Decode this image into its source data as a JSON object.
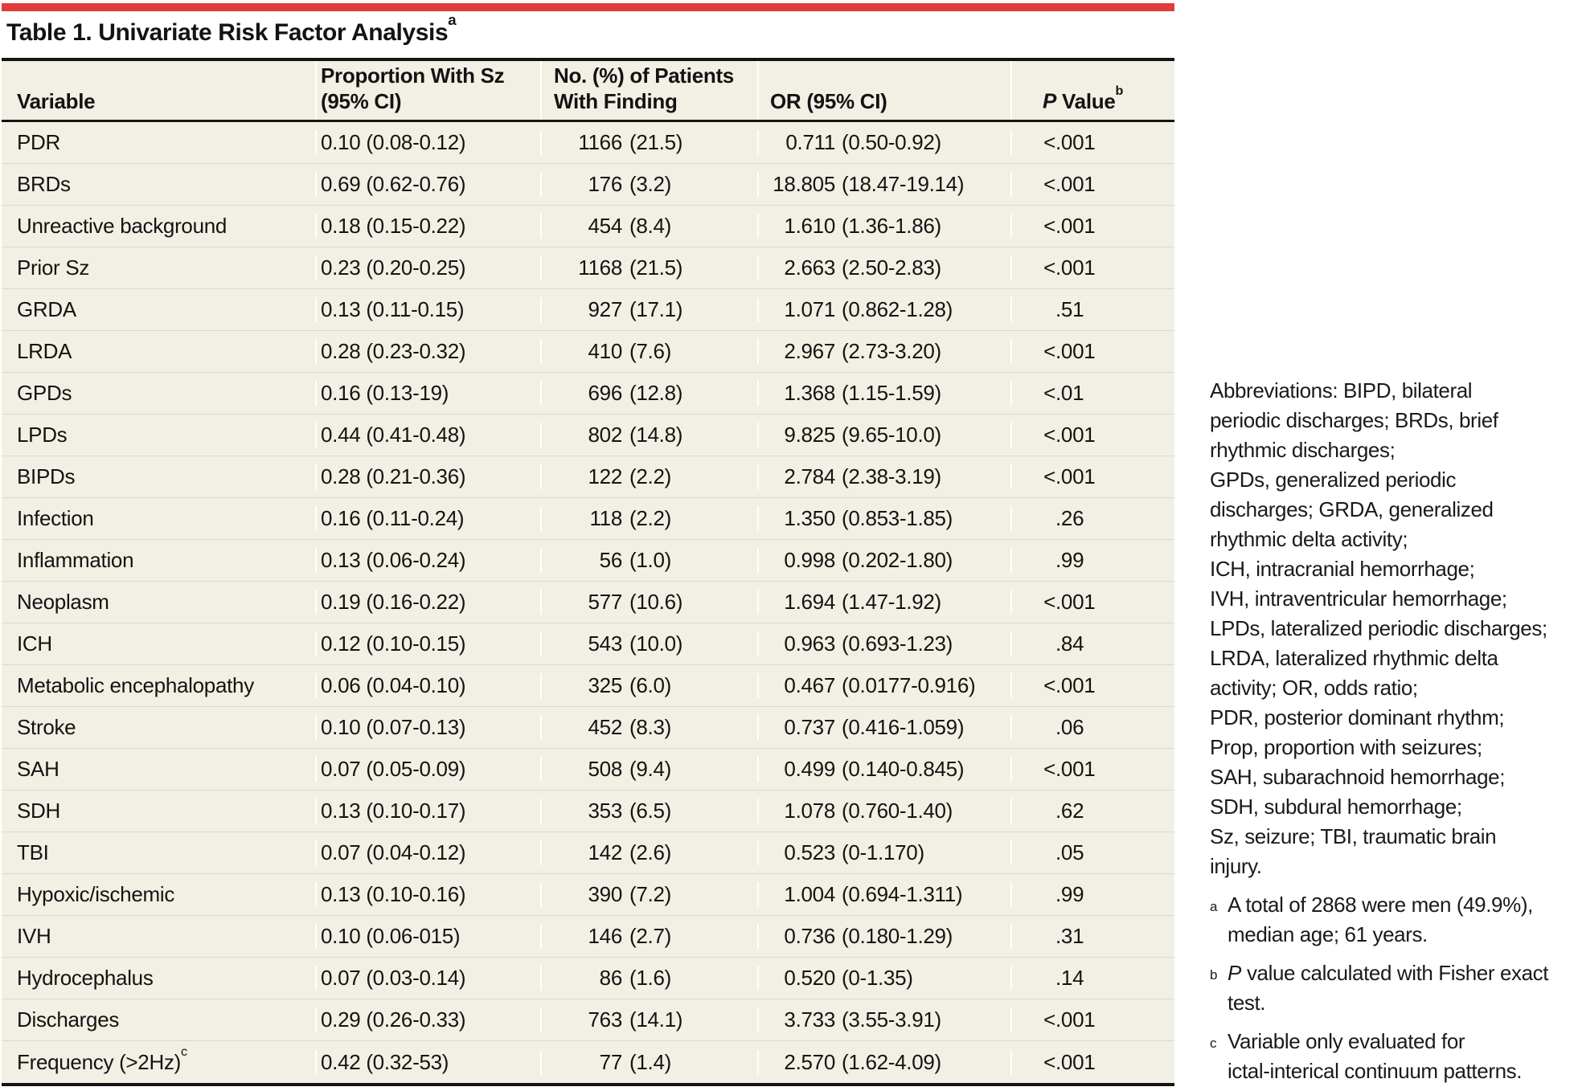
{
  "colors": {
    "accent_red": "#E03C3C",
    "row_beige": "#F2F0E5",
    "row_divider": "#DBD9CC",
    "border_black": "#141414"
  },
  "title": {
    "text": "Table 1. Univariate Risk Factor Analysis",
    "sup": "a"
  },
  "table": {
    "header": {
      "variable": "Variable",
      "proportion_line1": "Proportion With Sz",
      "proportion_line2": "(95% CI)",
      "patients_line1": "No. (%) of Patients",
      "patients_line2": "With Finding",
      "or": "OR (95% CI)",
      "p_italic": "P",
      "p_label": "Value",
      "p_sup": "b"
    },
    "rows": [
      {
        "variable": "PDR",
        "variable_sup": "",
        "proportion": "0.10 (0.08-0.12)",
        "count": "1166",
        "pct": "(21.5)",
        "or": "0.711",
        "or_ci": "(0.50-0.92)",
        "p_sign": "<",
        "p_value": ".001"
      },
      {
        "variable": "BRDs",
        "variable_sup": "",
        "proportion": "0.69 (0.62-0.76)",
        "count": "176",
        "pct": "(3.2)",
        "or": "18.805",
        "or_ci": "(18.47-19.14)",
        "p_sign": "<",
        "p_value": ".001"
      },
      {
        "variable": "Unreactive background",
        "variable_sup": "",
        "proportion": "0.18 (0.15-0.22)",
        "count": "454",
        "pct": "(8.4)",
        "or": "1.610",
        "or_ci": "(1.36-1.86)",
        "p_sign": "<",
        "p_value": ".001"
      },
      {
        "variable": "Prior Sz",
        "variable_sup": "",
        "proportion": "0.23 (0.20-0.25)",
        "count": "1168",
        "pct": "(21.5)",
        "or": "2.663",
        "or_ci": "(2.50-2.83)",
        "p_sign": "<",
        "p_value": ".001"
      },
      {
        "variable": "GRDA",
        "variable_sup": "",
        "proportion": "0.13 (0.11-0.15)",
        "count": "927",
        "pct": "(17.1)",
        "or": "1.071",
        "or_ci": "(0.862-1.28)",
        "p_sign": "",
        "p_value": ".51"
      },
      {
        "variable": "LRDA",
        "variable_sup": "",
        "proportion": "0.28 (0.23-0.32)",
        "count": "410",
        "pct": "(7.6)",
        "or": "2.967",
        "or_ci": "(2.73-3.20)",
        "p_sign": "<",
        "p_value": ".001"
      },
      {
        "variable": "GPDs",
        "variable_sup": "",
        "proportion": "0.16 (0.13-19)",
        "count": "696",
        "pct": "(12.8)",
        "or": "1.368",
        "or_ci": "(1.15-1.59)",
        "p_sign": "<",
        "p_value": ".01"
      },
      {
        "variable": "LPDs",
        "variable_sup": "",
        "proportion": "0.44 (0.41-0.48)",
        "count": "802",
        "pct": "(14.8)",
        "or": "9.825",
        "or_ci": "(9.65-10.0)",
        "p_sign": "<",
        "p_value": ".001"
      },
      {
        "variable": "BIPDs",
        "variable_sup": "",
        "proportion": "0.28 (0.21-0.36)",
        "count": "122",
        "pct": "(2.2)",
        "or": "2.784",
        "or_ci": "(2.38-3.19)",
        "p_sign": "<",
        "p_value": ".001"
      },
      {
        "variable": "Infection",
        "variable_sup": "",
        "proportion": "0.16 (0.11-0.24)",
        "count": "118",
        "pct": "(2.2)",
        "or": "1.350",
        "or_ci": "(0.853-1.85)",
        "p_sign": "",
        "p_value": ".26"
      },
      {
        "variable": "Inflammation",
        "variable_sup": "",
        "proportion": "0.13 (0.06-0.24)",
        "count": "56",
        "pct": "(1.0)",
        "or": "0.998",
        "or_ci": "(0.202-1.80)",
        "p_sign": "",
        "p_value": ".99"
      },
      {
        "variable": "Neoplasm",
        "variable_sup": "",
        "proportion": "0.19 (0.16-0.22)",
        "count": "577",
        "pct": "(10.6)",
        "or": "1.694",
        "or_ci": "(1.47-1.92)",
        "p_sign": "<",
        "p_value": ".001"
      },
      {
        "variable": "ICH",
        "variable_sup": "",
        "proportion": "0.12 (0.10-0.15)",
        "count": "543",
        "pct": "(10.0)",
        "or": "0.963",
        "or_ci": "(0.693-1.23)",
        "p_sign": "",
        "p_value": ".84"
      },
      {
        "variable": "Metabolic encephalopathy",
        "variable_sup": "",
        "proportion": "0.06 (0.04-0.10)",
        "count": "325",
        "pct": "(6.0)",
        "or": "0.467",
        "or_ci": "(0.0177-0.916)",
        "p_sign": "<",
        "p_value": ".001"
      },
      {
        "variable": "Stroke",
        "variable_sup": "",
        "proportion": "0.10 (0.07-0.13)",
        "count": "452",
        "pct": "(8.3)",
        "or": "0.737",
        "or_ci": "(0.416-1.059)",
        "p_sign": "",
        "p_value": ".06"
      },
      {
        "variable": "SAH",
        "variable_sup": "",
        "proportion": "0.07 (0.05-0.09)",
        "count": "508",
        "pct": "(9.4)",
        "or": "0.499",
        "or_ci": "(0.140-0.845)",
        "p_sign": "<",
        "p_value": ".001"
      },
      {
        "variable": "SDH",
        "variable_sup": "",
        "proportion": "0.13 (0.10-0.17)",
        "count": "353",
        "pct": "(6.5)",
        "or": "1.078",
        "or_ci": "(0.760-1.40)",
        "p_sign": "",
        "p_value": ".62"
      },
      {
        "variable": "TBI",
        "variable_sup": "",
        "proportion": "0.07 (0.04-0.12)",
        "count": "142",
        "pct": "(2.6)",
        "or": "0.523",
        "or_ci": "(0-1.170)",
        "p_sign": "",
        "p_value": ".05"
      },
      {
        "variable": "Hypoxic/ischemic",
        "variable_sup": "",
        "proportion": "0.13 (0.10-0.16)",
        "count": "390",
        "pct": "(7.2)",
        "or": "1.004",
        "or_ci": "(0.694-1.311)",
        "p_sign": "",
        "p_value": ".99"
      },
      {
        "variable": "IVH",
        "variable_sup": "",
        "proportion": "0.10 (0.06-015)",
        "count": "146",
        "pct": "(2.7)",
        "or": "0.736",
        "or_ci": "(0.180-1.29)",
        "p_sign": "",
        "p_value": ".31"
      },
      {
        "variable": "Hydrocephalus",
        "variable_sup": "",
        "proportion": "0.07 (0.03-0.14)",
        "count": "86",
        "pct": "(1.6)",
        "or": "0.520",
        "or_ci": "(0-1.35)",
        "p_sign": "",
        "p_value": ".14"
      },
      {
        "variable": "Discharges",
        "variable_sup": "",
        "proportion": "0.29 (0.26-0.33)",
        "count": "763",
        "pct": "(14.1)",
        "or": "3.733",
        "or_ci": "(3.55-3.91)",
        "p_sign": "<",
        "p_value": ".001"
      },
      {
        "variable": "Frequency (>2Hz)",
        "variable_sup": "c",
        "proportion": "0.42 (0.32-53)",
        "count": "77",
        "pct": "(1.4)",
        "or": "2.570",
        "or_ci": "(1.62-4.09)",
        "p_sign": "<",
        "p_value": ".001"
      }
    ]
  },
  "sidebar": {
    "abbreviation_lines": [
      "Abbreviations: BIPD, bilateral",
      "periodic discharges; BRDs, brief",
      "rhythmic discharges;",
      "GPDs, generalized periodic",
      "discharges; GRDA, generalized",
      "rhythmic delta activity;",
      "ICH, intracranial hemorrhage;",
      "IVH, intraventricular hemorrhage;",
      "LPDs, lateralized periodic discharges;",
      "LRDA, lateralized rhythmic delta",
      "activity; OR, odds ratio;",
      "PDR, posterior dominant rhythm;",
      "Prop, proportion with seizures;",
      "SAH, subarachnoid hemorrhage;",
      "SDH, subdural hemorrhage;",
      "Sz, seizure; TBI, traumatic brain",
      "injury."
    ],
    "footnotes": [
      {
        "marker": "a",
        "lead_italic": "",
        "lines": [
          "A total of 2868 were men (49.9%),",
          "median age; 61 years."
        ]
      },
      {
        "marker": "b",
        "lead_italic": "P",
        "lines": [
          "value calculated with Fisher exact",
          "test."
        ]
      },
      {
        "marker": "c",
        "lead_italic": "",
        "lines": [
          "Variable only evaluated for",
          "ictal-interical continuum patterns."
        ]
      }
    ]
  }
}
